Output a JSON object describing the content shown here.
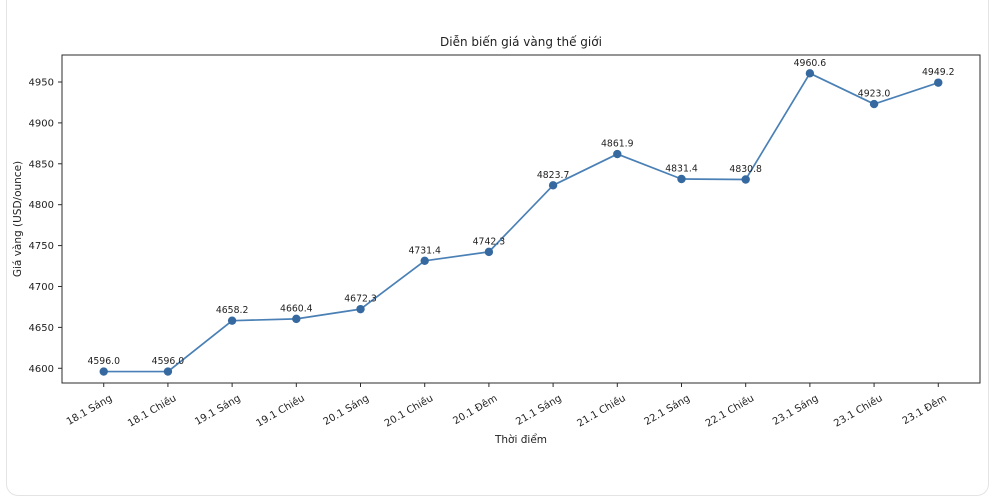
{
  "page": {
    "background_color": "#ffffff",
    "card_border_color": "#e4e4e4"
  },
  "chart_data": {
    "type": "line",
    "title": "Diễn biến giá vàng thế giới",
    "xlabel": "Thời điểm",
    "ylabel": "Giá vàng (USD/ounce)",
    "categories": [
      "18.1 Sáng",
      "18.1 Chiều",
      "19.1 Sáng",
      "19.1 Chiều",
      "20.1 Sáng",
      "20.1 Chiều",
      "20.1 Đêm",
      "21.1 Sáng",
      "21.1 Chiều",
      "22.1 Sáng",
      "22.1 Chiều",
      "23.1 Sáng",
      "23.1 Chiều",
      "23.1 Đêm"
    ],
    "values": [
      4596.0,
      4596.0,
      4658.2,
      4660.4,
      4672.3,
      4731.4,
      4742.3,
      4823.7,
      4861.9,
      4831.4,
      4830.8,
      4960.6,
      4923.0,
      4949.2
    ],
    "point_labels": [
      "4596.0",
      "4596.0",
      "4658.2",
      "4660.4",
      "4672.3",
      "4731.4",
      "4742.3",
      "4823.7",
      "4861.9",
      "4831.4",
      "4830.8",
      "4960.6",
      "4923.0",
      "4949.2"
    ],
    "y_ticks": [
      4600,
      4650,
      4700,
      4750,
      4800,
      4850,
      4900,
      4950
    ],
    "ylim": [
      4582,
      4983
    ],
    "x_margin": 0.65,
    "tick_rotation": 30,
    "grid": false,
    "legend": "none",
    "line_color": "#4a80b5",
    "marker_color": "#36699f",
    "axis_color": "#2b2b2b",
    "text_color": "#1f1f1f"
  }
}
